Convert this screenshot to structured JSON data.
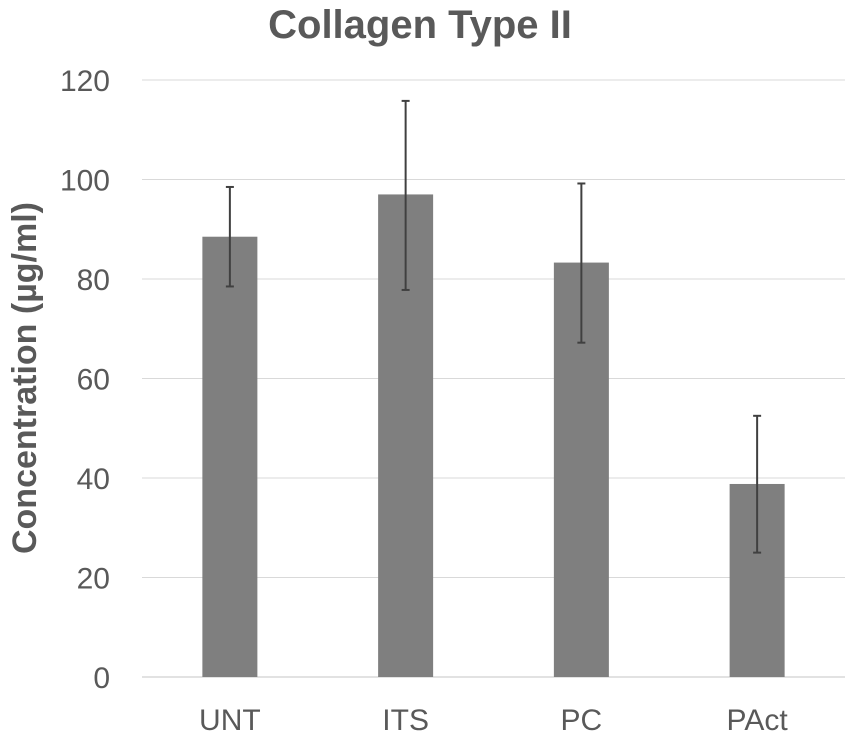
{
  "chart_data": {
    "type": "bar",
    "title": "Collagen Type II",
    "xlabel": "",
    "ylabel": "Concentration (µg/ml)",
    "categories": [
      "UNT",
      "ITS",
      "PC",
      "PAct"
    ],
    "values": [
      88.5,
      97,
      83.3,
      38.8
    ],
    "error_low": [
      78.5,
      77.8,
      67.2,
      25
    ],
    "error_high": [
      98.5,
      115.8,
      99.2,
      52.5
    ],
    "ylim": [
      0,
      120
    ],
    "yticks": [
      0,
      20,
      40,
      60,
      80,
      100,
      120
    ],
    "grid": true,
    "legend": "none"
  },
  "colors": {
    "bar": "#7f7f7f",
    "error_bar": "#404040",
    "text": "#595959",
    "grid": "#d9d9d9"
  }
}
